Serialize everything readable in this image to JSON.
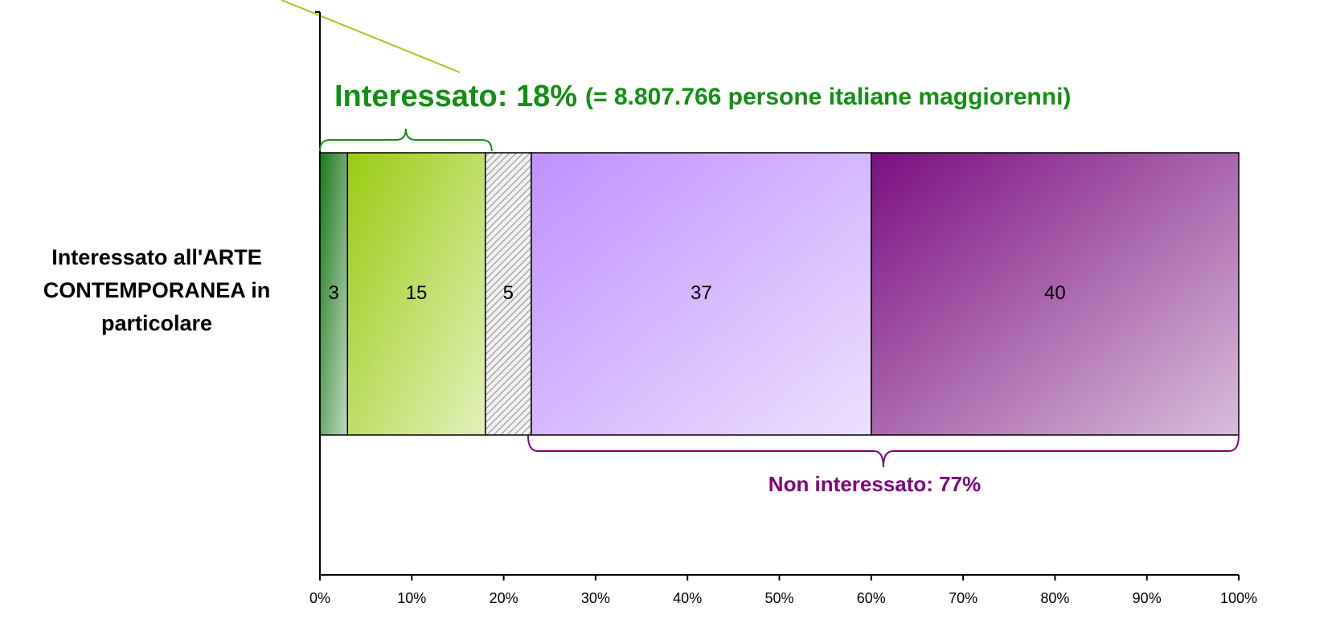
{
  "chart_data": {
    "type": "stacked_barh",
    "categories": [
      "Interessato all'ARTE CONTEMPORANEA in particolare"
    ],
    "series": [
      {
        "color": "#1a7a1a",
        "values": [
          3
        ]
      },
      {
        "color": "#99cc11",
        "values": [
          15
        ]
      },
      {
        "color": "#a8a8a8",
        "hatch": true,
        "values": [
          5
        ]
      },
      {
        "color": "#c090ff",
        "values": [
          37
        ]
      },
      {
        "color": "#7a1080",
        "values": [
          40
        ]
      }
    ],
    "xlim": [
      0,
      100
    ],
    "xticks": [
      {
        "value": 0,
        "label": "0%"
      },
      {
        "value": 10,
        "label": "10%"
      },
      {
        "value": 20,
        "label": "20%"
      },
      {
        "value": 30,
        "label": "30%"
      },
      {
        "value": 40,
        "label": "40%"
      },
      {
        "value": 50,
        "label": "50%"
      },
      {
        "value": 60,
        "label": "60%"
      },
      {
        "value": 70,
        "label": "70%"
      },
      {
        "value": 80,
        "label": "80%"
      },
      {
        "value": 90,
        "label": "90%"
      },
      {
        "value": 100,
        "label": "100%"
      }
    ],
    "annotations": [
      "Interessato: 18%",
      "(= 8.807.766 persone italiane maggiorenni)",
      "Non interessato: 77%"
    ]
  }
}
